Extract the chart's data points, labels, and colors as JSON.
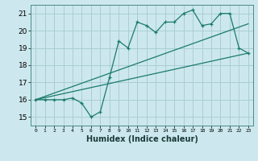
{
  "xlabel": "Humidex (Indice chaleur)",
  "ylabel": "",
  "bg_color": "#cce8ee",
  "grid_color": "#aacdd6",
  "line_color": "#1a7a6e",
  "xlim": [
    -0.5,
    23.5
  ],
  "ylim": [
    14.5,
    21.5
  ],
  "xticks": [
    0,
    1,
    2,
    3,
    4,
    5,
    6,
    7,
    8,
    9,
    10,
    11,
    12,
    13,
    14,
    15,
    16,
    17,
    18,
    19,
    20,
    21,
    22,
    23
  ],
  "yticks": [
    15,
    16,
    17,
    18,
    19,
    20,
    21
  ],
  "curve_x": [
    0,
    1,
    2,
    3,
    4,
    5,
    6,
    7,
    8,
    9,
    10,
    11,
    12,
    13,
    14,
    15,
    16,
    17,
    18,
    19,
    20,
    21,
    22,
    23
  ],
  "curve_y": [
    16.0,
    16.0,
    16.0,
    16.0,
    16.1,
    15.8,
    15.0,
    15.3,
    17.3,
    19.4,
    19.0,
    20.5,
    20.3,
    19.9,
    20.5,
    20.5,
    21.0,
    21.2,
    20.3,
    20.4,
    21.0,
    21.0,
    19.0,
    18.7
  ],
  "trend1_x": [
    0,
    23
  ],
  "trend1_y": [
    16.0,
    18.7
  ],
  "trend2_x": [
    0,
    23
  ],
  "trend2_y": [
    16.0,
    20.4
  ]
}
